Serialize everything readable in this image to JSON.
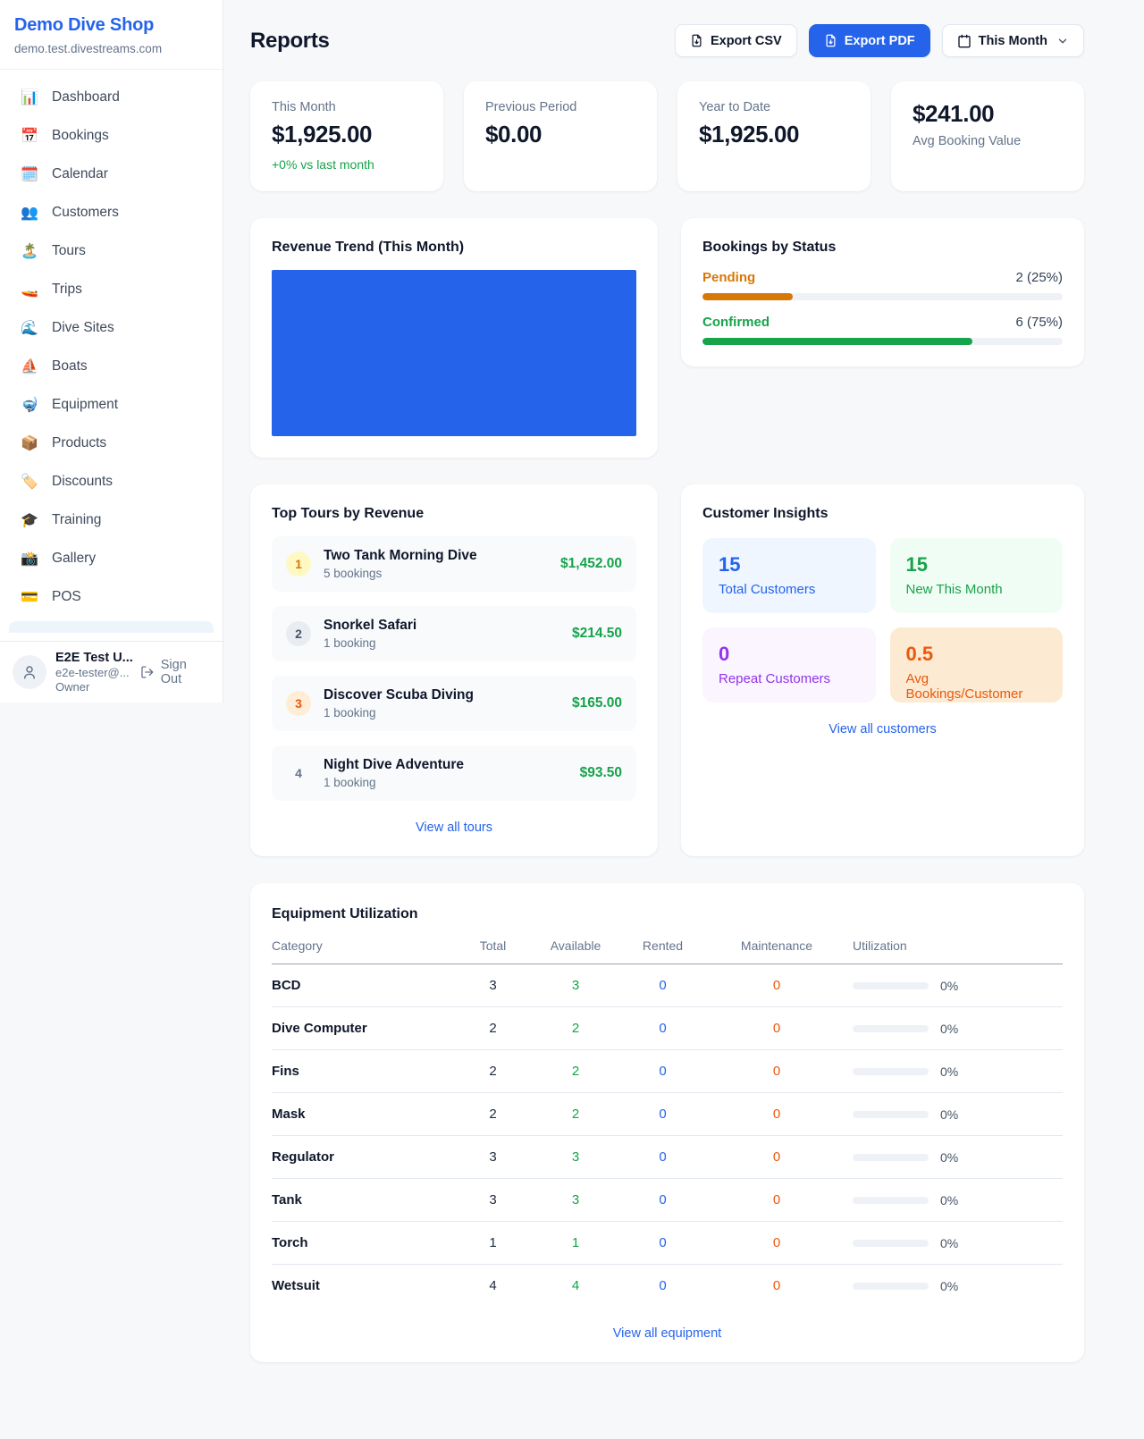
{
  "colors": {
    "accent": "#2563eb",
    "green": "#16a34a",
    "amber": "#d97706",
    "orange": "#ea580c",
    "purple": "#9333ea",
    "chart_blue": "#2563eb"
  },
  "sidebar": {
    "brand": {
      "name": "Demo Dive Shop",
      "domain": "demo.test.divestreams.com"
    },
    "items": [
      {
        "icon": "📊",
        "label": "Dashboard"
      },
      {
        "icon": "📅",
        "label": "Bookings"
      },
      {
        "icon": "🗓️",
        "label": "Calendar"
      },
      {
        "icon": "👥",
        "label": "Customers"
      },
      {
        "icon": "🏝️",
        "label": "Tours"
      },
      {
        "icon": "🚤",
        "label": "Trips"
      },
      {
        "icon": "🌊",
        "label": "Dive Sites"
      },
      {
        "icon": "⛵",
        "label": "Boats"
      },
      {
        "icon": "🤿",
        "label": "Equipment"
      },
      {
        "icon": "📦",
        "label": "Products"
      },
      {
        "icon": "🏷️",
        "label": "Discounts"
      },
      {
        "icon": "🎓",
        "label": "Training"
      },
      {
        "icon": "📸",
        "label": "Gallery"
      },
      {
        "icon": "💳",
        "label": "POS"
      }
    ],
    "user": {
      "name": "E2E Test U...",
      "email": "e2e-tester@...",
      "role": "Owner",
      "sign_out_label": "Sign Out"
    }
  },
  "header": {
    "title": "Reports",
    "export_csv_label": "Export CSV",
    "export_pdf_label": "Export PDF",
    "period_label": "This Month"
  },
  "stats": [
    {
      "label": "This Month",
      "value": "$1,925.00",
      "sub": "+0% vs last month"
    },
    {
      "label": "Previous Period",
      "value": "$0.00",
      "sub": ""
    },
    {
      "label": "Year to Date",
      "value": "$1,925.00",
      "sub": ""
    },
    {
      "label": "Avg Booking Value",
      "value": "$241.00",
      "sub": ""
    }
  ],
  "revenue_trend": {
    "title": "Revenue Trend (This Month)"
  },
  "bookings_by_status": {
    "title": "Bookings by Status",
    "rows": [
      {
        "label": "Pending",
        "count": "2 (25%)",
        "pct": 25,
        "labelClass": "lbl-amber",
        "barClass": "bar-amber"
      },
      {
        "label": "Confirmed",
        "count": "6 (75%)",
        "pct": 75,
        "labelClass": "lbl-green",
        "barClass": "bar-green"
      }
    ]
  },
  "top_tours": {
    "title": "Top Tours by Revenue",
    "rows": [
      {
        "rank": "1",
        "rankClass": "rk-gold",
        "name": "Two Tank Morning Dive",
        "bookings": "5 bookings",
        "amount": "$1,452.00"
      },
      {
        "rank": "2",
        "rankClass": "rk-silver",
        "name": "Snorkel Safari",
        "bookings": "1 booking",
        "amount": "$214.50"
      },
      {
        "rank": "3",
        "rankClass": "rk-bronze",
        "name": "Discover Scuba Diving",
        "bookings": "1 booking",
        "amount": "$165.00"
      },
      {
        "rank": "4",
        "rankClass": "rk-plain",
        "name": "Night Dive Adventure",
        "bookings": "1 booking",
        "amount": "$93.50"
      }
    ],
    "view_all": "View all tours"
  },
  "customer_insights": {
    "title": "Customer Insights",
    "tiles": [
      {
        "value": "15",
        "label": "Total Customers",
        "theme": "t-blue"
      },
      {
        "value": "15",
        "label": "New This Month",
        "theme": "t-green"
      },
      {
        "value": "0",
        "label": "Repeat Customers",
        "theme": "t-purple"
      },
      {
        "value": "0.5",
        "label": "Avg Bookings/Customer",
        "theme": "t-orange"
      }
    ],
    "view_all": "View all customers"
  },
  "equipment": {
    "title": "Equipment Utilization",
    "columns": {
      "category": "Category",
      "total": "Total",
      "available": "Available",
      "rented": "Rented",
      "maintenance": "Maintenance",
      "utilization": "Utilization"
    },
    "rows": [
      {
        "category": "BCD",
        "total": "3",
        "available": "3",
        "rented": "0",
        "maintenance": "0",
        "pct": 0,
        "pct_label": "0%"
      },
      {
        "category": "Dive Computer",
        "total": "2",
        "available": "2",
        "rented": "0",
        "maintenance": "0",
        "pct": 0,
        "pct_label": "0%"
      },
      {
        "category": "Fins",
        "total": "2",
        "available": "2",
        "rented": "0",
        "maintenance": "0",
        "pct": 0,
        "pct_label": "0%"
      },
      {
        "category": "Mask",
        "total": "2",
        "available": "2",
        "rented": "0",
        "maintenance": "0",
        "pct": 0,
        "pct_label": "0%"
      },
      {
        "category": "Regulator",
        "total": "3",
        "available": "3",
        "rented": "0",
        "maintenance": "0",
        "pct": 0,
        "pct_label": "0%"
      },
      {
        "category": "Tank",
        "total": "3",
        "available": "3",
        "rented": "0",
        "maintenance": "0",
        "pct": 0,
        "pct_label": "0%"
      },
      {
        "category": "Torch",
        "total": "1",
        "available": "1",
        "rented": "0",
        "maintenance": "0",
        "pct": 0,
        "pct_label": "0%"
      },
      {
        "category": "Wetsuit",
        "total": "4",
        "available": "4",
        "rented": "0",
        "maintenance": "0",
        "pct": 0,
        "pct_label": "0%"
      }
    ],
    "view_all": "View all equipment"
  },
  "chart_data": [
    {
      "type": "bar",
      "title": "Revenue Trend (This Month)",
      "categories": [
        "This Month"
      ],
      "values": [
        1925.0
      ],
      "xlabel": "",
      "ylabel": "",
      "legend": false,
      "grid": false,
      "note": "Chart renders as a single solid blue block filling the plot area"
    },
    {
      "type": "bar",
      "title": "Bookings by Status",
      "categories": [
        "Pending",
        "Confirmed"
      ],
      "values": [
        2,
        6
      ],
      "percent": [
        25,
        75
      ],
      "colors": [
        "#d97706",
        "#16a34a"
      ],
      "note": "Horizontal progress bars"
    }
  ]
}
